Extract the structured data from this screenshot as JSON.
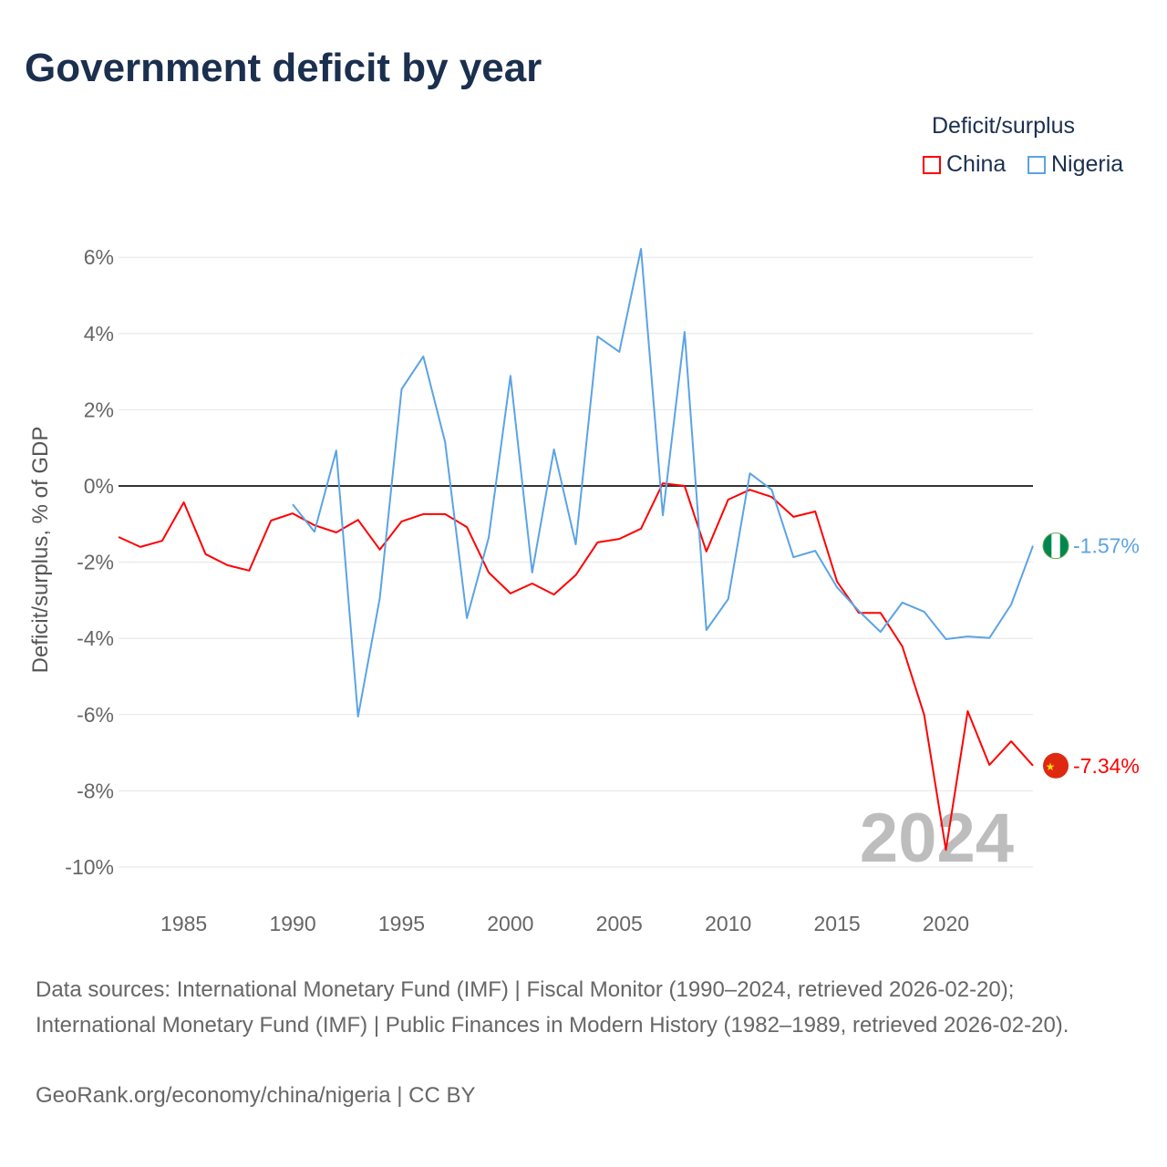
{
  "chart_data": {
    "type": "line",
    "title": "Government deficit by year",
    "ylabel": "Deficit/surplus, % of GDP",
    "xlabel": "",
    "legend_title": "Deficit/surplus",
    "legend_position": "top-right",
    "ylim": [
      -10.5,
      6.5
    ],
    "xlim": [
      1982,
      2024
    ],
    "yticks": [
      6,
      4,
      2,
      0,
      -2,
      -4,
      -6,
      -8,
      -10
    ],
    "ytick_labels": [
      "6%",
      "4%",
      "2%",
      "0%",
      "-2%",
      "-4%",
      "-6%",
      "-8%",
      "-10%"
    ],
    "xticks": [
      1985,
      1990,
      1995,
      2000,
      2005,
      2010,
      2015,
      2020
    ],
    "xtick_labels": [
      "1985",
      "1990",
      "1995",
      "2000",
      "2005",
      "2010",
      "2015",
      "2020"
    ],
    "grid": true,
    "year_watermark": "2024",
    "series": [
      {
        "name": "China",
        "color": "#ff0000",
        "end_label": "-7.34%",
        "start_year": 1982,
        "values": [
          -1.34,
          -1.6,
          -1.44,
          -0.43,
          -1.79,
          -2.08,
          -2.22,
          -0.91,
          -0.72,
          -1.03,
          -1.22,
          -0.89,
          -1.67,
          -0.93,
          -0.74,
          -0.74,
          -1.08,
          -2.27,
          -2.82,
          -2.56,
          -2.85,
          -2.34,
          -1.48,
          -1.39,
          -1.12,
          0.07,
          0.0,
          -1.72,
          -0.36,
          -0.1,
          -0.29,
          -0.81,
          -0.67,
          -2.51,
          -3.33,
          -3.33,
          -4.21,
          -6.0,
          -9.55,
          -5.91,
          -7.32,
          -6.7,
          -7.34
        ]
      },
      {
        "name": "Nigeria",
        "color": "#5ba3e6",
        "end_label": "-1.57%",
        "start_year": 1990,
        "values": [
          -0.48,
          -1.2,
          0.93,
          -6.05,
          -2.94,
          2.54,
          3.4,
          1.15,
          -3.47,
          -1.36,
          2.89,
          -2.27,
          0.96,
          -1.53,
          3.92,
          3.52,
          6.22,
          -0.77,
          4.04,
          -3.78,
          -2.97,
          0.33,
          -0.1,
          -1.87,
          -1.7,
          -2.66,
          -3.28,
          -3.83,
          -3.06,
          -3.3,
          -4.02,
          -3.95,
          -3.99,
          -3.11,
          -1.57
        ]
      }
    ]
  },
  "footer": {
    "sources": "Data sources: International Monetary Fund (IMF) | Fiscal Monitor (1990–2024, retrieved 2026-02-20); International Monetary Fund (IMF) | Public Finances in Modern History (1982–1989, retrieved 2026-02-20).",
    "credit": "GeoRank.org/economy/china/nigeria | CC BY"
  }
}
